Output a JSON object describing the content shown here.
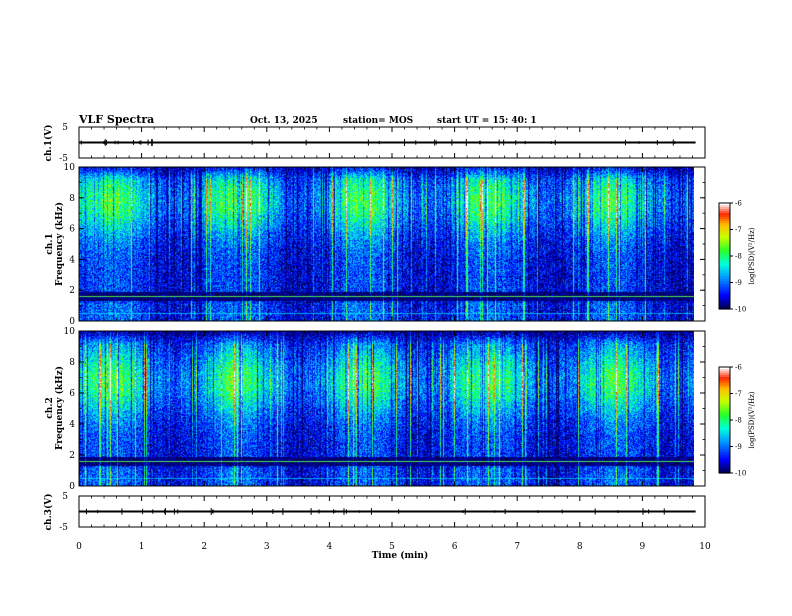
{
  "header": {
    "title": "VLF Spectra",
    "date": "Oct. 13, 2025",
    "station": "station= MOS",
    "start": "start  UT  =   15: 40: 1"
  },
  "colors": {
    "frame": "#000000",
    "background": "#ffffff",
    "colormap": [
      "#000066",
      "#0000ff",
      "#00aaff",
      "#00ffcc",
      "#33ff33",
      "#ccff00",
      "#ffcc00",
      "#ff3300",
      "#ffffff"
    ]
  },
  "chart_data": [
    {
      "type": "line",
      "id": "ch1-waveform",
      "ylabel": "ch.1(V)",
      "ylim": [
        -5,
        5
      ],
      "yticks": [
        "5",
        "-5"
      ],
      "baseline_value": 0,
      "xlim": [
        0,
        10
      ],
      "data_end_min": 9.85
    },
    {
      "type": "heatmap",
      "id": "ch1-spectrogram",
      "ylabel": "ch.1",
      "ylabel2": "Frequency (kHz)",
      "ylim": [
        0,
        10
      ],
      "yticks": [
        "0",
        "2",
        "4",
        "6",
        "8",
        "10"
      ],
      "xlim": [
        0,
        10
      ],
      "data_end_min": 9.85,
      "colorbar": {
        "label": "log(PSD)(V²/Hz)",
        "range": [
          -10,
          -6
        ],
        "ticks": [
          "-6",
          "-7",
          "-8",
          "-9",
          "-10"
        ]
      },
      "peak_band_khz": [
        6,
        9
      ]
    },
    {
      "type": "heatmap",
      "id": "ch2-spectrogram",
      "ylabel": "ch.2",
      "ylabel2": "Frequency (kHz)",
      "ylim": [
        0,
        10
      ],
      "yticks": [
        "0",
        "2",
        "4",
        "6",
        "8",
        "10"
      ],
      "xlim": [
        0,
        10
      ],
      "data_end_min": 9.85,
      "colorbar": {
        "label": "log(PSD)(V²/Hz)",
        "range": [
          -10,
          -6
        ],
        "ticks": [
          "-6",
          "-7",
          "-8",
          "-9",
          "-10"
        ]
      },
      "peak_band_khz": [
        5,
        8
      ]
    },
    {
      "type": "line",
      "id": "ch3-waveform",
      "ylabel": "ch.3(V)",
      "ylim": [
        -5,
        5
      ],
      "yticks": [
        "5",
        "-5"
      ],
      "baseline_value": 0,
      "xlim": [
        0,
        10
      ],
      "data_end_min": 9.85
    }
  ],
  "xaxis": {
    "label": "Time (min)",
    "ticks": [
      "0",
      "1",
      "2",
      "3",
      "4",
      "5",
      "6",
      "7",
      "8",
      "9",
      "10"
    ]
  }
}
